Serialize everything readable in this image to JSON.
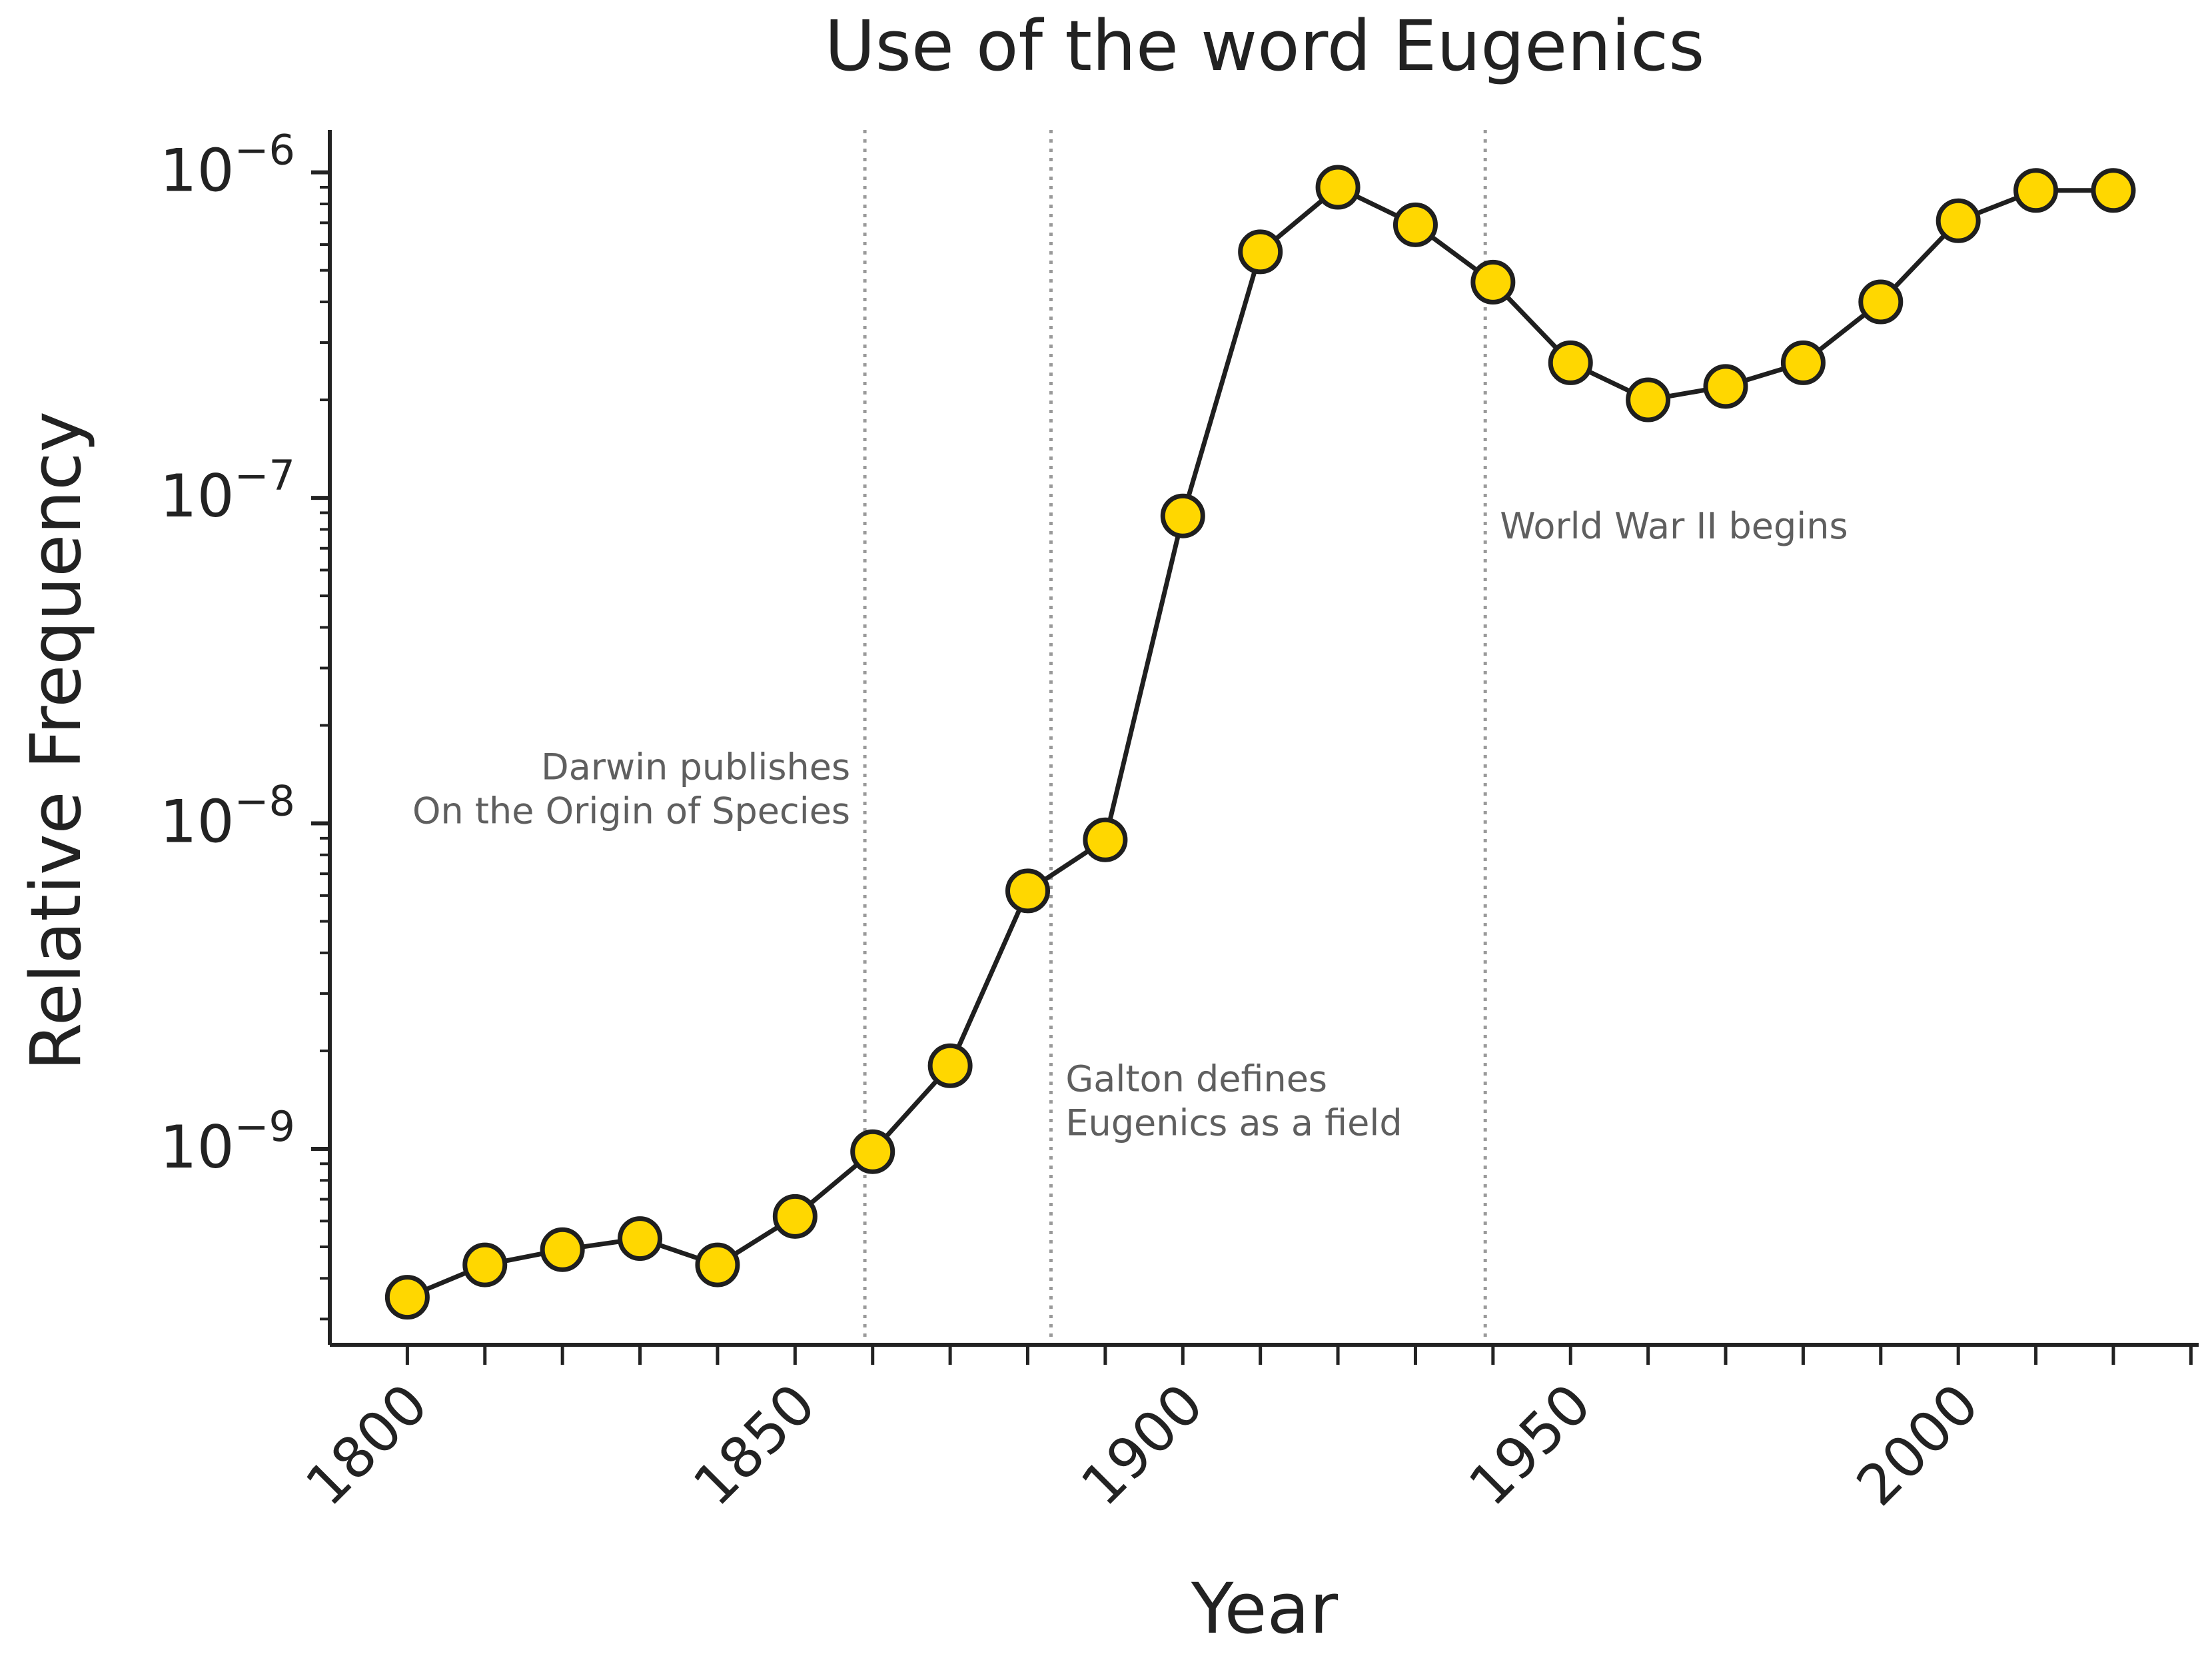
{
  "chart_data": {
    "type": "line",
    "title": "Use of the word Eugenics",
    "xlabel": "Year",
    "ylabel": "Relative Frequency",
    "y_scale": "log",
    "xlim": [
      1790,
      2031
    ],
    "ylim": [
      2.5e-10,
      1.35e-06
    ],
    "x_ticks": [
      1800,
      1850,
      1900,
      1950,
      2000
    ],
    "x_tick_labels": [
      "1800",
      "1850",
      "1900",
      "1950",
      "2000"
    ],
    "y_tick_exponents": [
      -9,
      -8,
      -7,
      -6
    ],
    "y_tick_base": "10",
    "y_tick_labels": [
      "10−9",
      "10−8",
      "10−7",
      "10−6"
    ],
    "grid": false,
    "series": [
      {
        "x": [
          1800,
          1810,
          1820,
          1830,
          1840,
          1850,
          1860,
          1870,
          1880,
          1890,
          1900,
          1910,
          1920,
          1930,
          1940,
          1950,
          1960,
          1970,
          1980,
          1990,
          2000,
          2010,
          2020
        ],
        "y": [
          3.5e-10,
          4.4e-10,
          4.9e-10,
          5.3e-10,
          4.4e-10,
          6.2e-10,
          9.8e-10,
          1.8e-09,
          6.2e-09,
          8.9e-09,
          8.8e-08,
          5.7e-07,
          9e-07,
          6.9e-07,
          4.6e-07,
          2.6e-07,
          2e-07,
          2.2e-07,
          2.6e-07,
          4e-07,
          7.1e-07,
          8.8e-07,
          8.8e-07
        ]
      }
    ],
    "annotations": [
      {
        "x": 1859,
        "lines": [
          "Darwin publishes",
          "On the Origin of Species"
        ],
        "align": "right",
        "y_anchor": 1e-08
      },
      {
        "x": 1883,
        "lines": [
          "Galton defines",
          "Eugenics as a field"
        ],
        "align": "left",
        "y_anchor": 1.1e-09
      },
      {
        "x": 1939,
        "lines": [
          "World War II begins"
        ],
        "align": "left",
        "y_anchor": 7.5e-08
      }
    ],
    "colors": {
      "line": "#1f1f1f",
      "marker_fill": "#ffd700",
      "marker_edge": "#1f1f1f",
      "vline": "#9a9a9a",
      "annotation": "#5f5f5f",
      "axis": "#222222"
    }
  }
}
